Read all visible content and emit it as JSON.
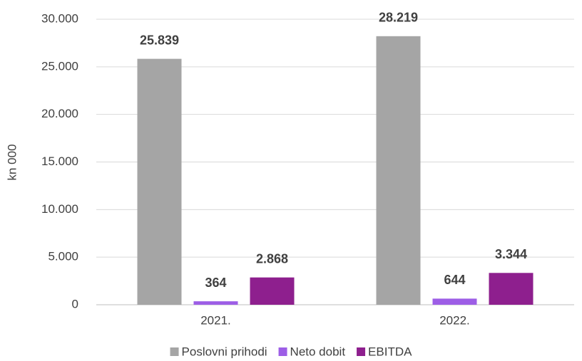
{
  "chart_data": {
    "type": "bar",
    "categories": [
      "2021.",
      "2022."
    ],
    "series": [
      {
        "name": "Poslovni prihodi",
        "color": "#a5a5a5",
        "values": [
          25839,
          28219
        ],
        "value_labels": [
          "25.839",
          "28.219"
        ]
      },
      {
        "name": "Neto dobit",
        "color": "#9d5ee6",
        "values": [
          364,
          644
        ],
        "value_labels": [
          "364",
          "644"
        ]
      },
      {
        "name": "EBITDA",
        "color": "#8e1f8e",
        "values": [
          2868,
          3344
        ],
        "value_labels": [
          "2.868",
          "3.344"
        ]
      }
    ],
    "y_label": "kn 000",
    "ylim": [
      0,
      30000
    ],
    "yticks": [
      0,
      {
        "value": 5000,
        "label": "5.000"
      },
      {
        "value": 10000,
        "label": "10.000"
      },
      {
        "value": 15000,
        "label": "15.000"
      },
      {
        "value": 20000,
        "label": "20.000"
      },
      {
        "value": 25000,
        "label": "25.000"
      },
      {
        "value": 30000,
        "label": "30.000"
      }
    ],
    "grid": true,
    "legend": "bottom"
  }
}
